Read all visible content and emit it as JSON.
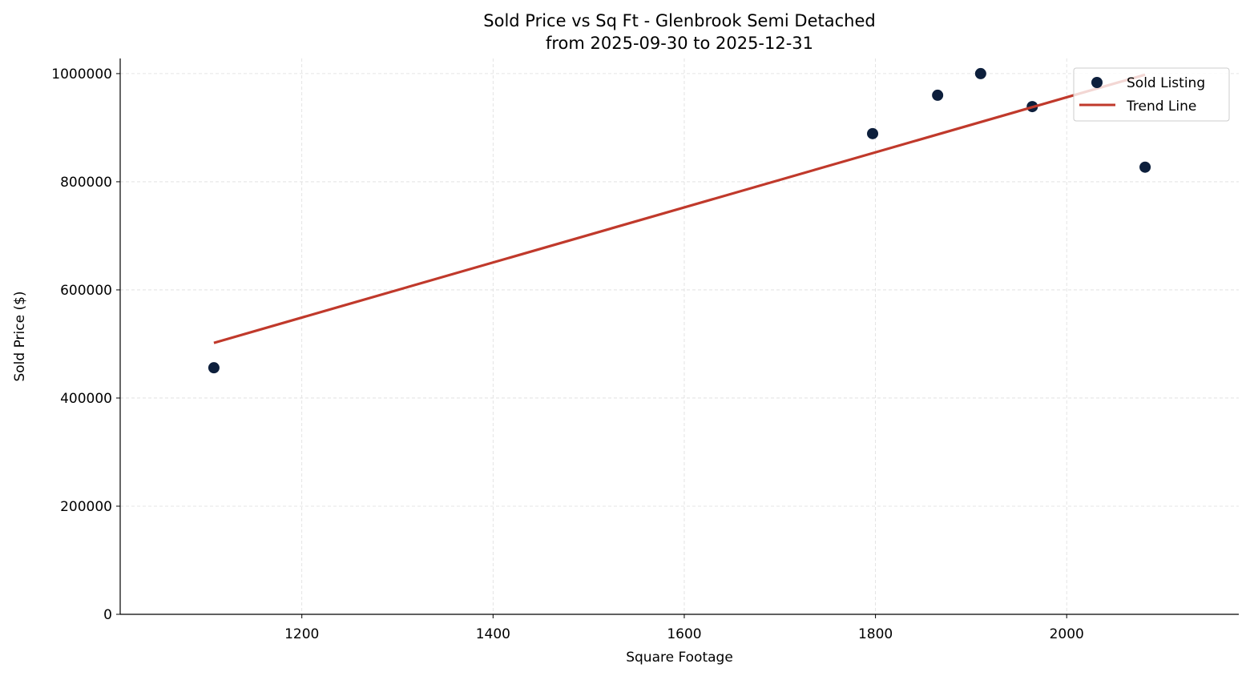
{
  "chart_data": {
    "type": "scatter",
    "title": "Sold Price vs Sq Ft - Glenbrook Semi Detached",
    "subtitle": "from 2025-09-30 to 2025-12-31",
    "xlabel": "Square Footage",
    "ylabel": "Sold Price ($)",
    "xlim": [
      1010,
      2180
    ],
    "ylim": [
      0,
      1028000
    ],
    "xticks": [
      1200,
      1400,
      1600,
      1800,
      2000
    ],
    "yticks": [
      0,
      200000,
      400000,
      600000,
      800000,
      1000000
    ],
    "grid": true,
    "legend_position": "top-right",
    "series": [
      {
        "name": "Sold Listing",
        "type": "scatter",
        "color": "#0d1f3c",
        "points": [
          {
            "x": 1108,
            "y": 456000
          },
          {
            "x": 1797,
            "y": 889000
          },
          {
            "x": 1865,
            "y": 960000
          },
          {
            "x": 1910,
            "y": 1000000
          },
          {
            "x": 1964,
            "y": 939000
          },
          {
            "x": 2082,
            "y": 827000
          }
        ]
      },
      {
        "name": "Trend Line",
        "type": "line",
        "color": "#c0392b",
        "points": [
          {
            "x": 1108,
            "y": 502000
          },
          {
            "x": 2082,
            "y": 998000
          }
        ]
      }
    ]
  }
}
